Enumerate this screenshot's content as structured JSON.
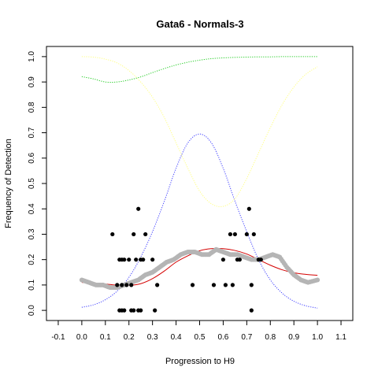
{
  "chart_data": {
    "type": "scatter",
    "title": "Gata6 - Normals-3",
    "xlabel": "Progression to H9",
    "ylabel": "Frequency of Detection",
    "xlim": [
      -0.15,
      1.15
    ],
    "ylim": [
      -0.04,
      1.04
    ],
    "x_ticks": [
      "-0.1",
      "0.0",
      "0.1",
      "0.2",
      "0.3",
      "0.4",
      "0.5",
      "0.6",
      "0.7",
      "0.8",
      "0.9",
      "1.0",
      "1.1"
    ],
    "y_ticks": [
      "0.0",
      "0.1",
      "0.2",
      "0.3",
      "0.4",
      "0.5",
      "0.6",
      "0.7",
      "0.8",
      "0.9",
      "1.0"
    ],
    "grid": false,
    "legend": "none",
    "colors": {
      "points": "#000000",
      "smoothed": "#b5b5b5",
      "fit": "#d40000",
      "blue_curve": "#4040ff",
      "green_curve": "#22cc22",
      "yellow_curve": "#ffff80"
    },
    "series": [
      {
        "role": "observed points",
        "x": [
          0.13,
          0.15,
          0.16,
          0.16,
          0.17,
          0.17,
          0.17,
          0.18,
          0.18,
          0.19,
          0.2,
          0.21,
          0.21,
          0.22,
          0.22,
          0.23,
          0.24,
          0.24,
          0.25,
          0.25,
          0.26,
          0.27,
          0.3,
          0.31,
          0.32,
          0.47,
          0.56,
          0.6,
          0.61,
          0.63,
          0.64,
          0.65,
          0.66,
          0.67,
          0.7,
          0.71,
          0.72,
          0.72,
          0.73,
          0.75,
          0.76
        ],
        "y": [
          0.3,
          0.1,
          0.2,
          0.0,
          0.1,
          0.2,
          0.0,
          0.2,
          0.0,
          0.1,
          0.2,
          0.0,
          0.1,
          0.0,
          0.3,
          0.2,
          0.0,
          0.4,
          0.2,
          0.0,
          0.2,
          0.3,
          0.2,
          0.0,
          0.1,
          0.1,
          0.1,
          0.2,
          0.1,
          0.3,
          0.1,
          0.3,
          0.2,
          0.2,
          0.3,
          0.4,
          0.0,
          0.1,
          0.3,
          0.2,
          0.2
        ]
      },
      {
        "role": "smoothed frequency (gray dots)",
        "x": [
          0.0,
          0.03,
          0.06,
          0.09,
          0.12,
          0.15,
          0.18,
          0.21,
          0.24,
          0.27,
          0.3,
          0.33,
          0.36,
          0.39,
          0.42,
          0.45,
          0.48,
          0.51,
          0.54,
          0.57,
          0.6,
          0.63,
          0.66,
          0.69,
          0.72,
          0.75,
          0.78,
          0.81,
          0.84,
          0.87,
          0.9,
          0.93,
          0.96,
          1.0
        ],
        "y": [
          0.12,
          0.11,
          0.1,
          0.1,
          0.09,
          0.09,
          0.1,
          0.11,
          0.12,
          0.14,
          0.15,
          0.17,
          0.19,
          0.2,
          0.22,
          0.23,
          0.23,
          0.22,
          0.22,
          0.24,
          0.23,
          0.22,
          0.22,
          0.21,
          0.2,
          0.2,
          0.21,
          0.22,
          0.21,
          0.17,
          0.14,
          0.12,
          0.11,
          0.12
        ]
      },
      {
        "role": "fitted curve (red)",
        "x": [
          0.0,
          0.05,
          0.1,
          0.15,
          0.2,
          0.25,
          0.3,
          0.35,
          0.4,
          0.45,
          0.5,
          0.55,
          0.6,
          0.65,
          0.7,
          0.75,
          0.8,
          0.85,
          0.9,
          0.95,
          1.0
        ],
        "y": [
          0.11,
          0.108,
          0.104,
          0.099,
          0.098,
          0.105,
          0.125,
          0.155,
          0.19,
          0.215,
          0.235,
          0.243,
          0.243,
          0.236,
          0.222,
          0.2,
          0.178,
          0.16,
          0.148,
          0.142,
          0.138
        ]
      },
      {
        "role": "blue dotted curve",
        "x": [
          0.0,
          0.05,
          0.1,
          0.15,
          0.2,
          0.25,
          0.3,
          0.35,
          0.4,
          0.45,
          0.5,
          0.55,
          0.6,
          0.65,
          0.7,
          0.75,
          0.8,
          0.85,
          0.9,
          0.95,
          1.0
        ],
        "y": [
          0.012,
          0.022,
          0.042,
          0.076,
          0.13,
          0.21,
          0.31,
          0.43,
          0.56,
          0.66,
          0.695,
          0.66,
          0.56,
          0.43,
          0.31,
          0.2,
          0.12,
          0.068,
          0.036,
          0.018,
          0.009
        ]
      },
      {
        "role": "green dotted curve",
        "x": [
          0.0,
          0.05,
          0.1,
          0.15,
          0.2,
          0.25,
          0.3,
          0.35,
          0.4,
          0.45,
          0.5,
          0.55,
          0.6,
          0.65,
          0.7,
          0.75,
          0.8,
          0.85,
          0.9,
          0.95,
          1.0
        ],
        "y": [
          0.921,
          0.912,
          0.9,
          0.9,
          0.908,
          0.92,
          0.937,
          0.953,
          0.967,
          0.978,
          0.986,
          0.992,
          0.995,
          0.997,
          0.998,
          0.999,
          0.999,
          1.0,
          1.0,
          1.0,
          1.0
        ]
      },
      {
        "role": "yellow dotted curve",
        "x": [
          0.0,
          0.05,
          0.1,
          0.15,
          0.2,
          0.25,
          0.3,
          0.35,
          0.4,
          0.45,
          0.5,
          0.55,
          0.6,
          0.65,
          0.7,
          0.75,
          0.8,
          0.85,
          0.9,
          0.95,
          1.0
        ],
        "y": [
          1.0,
          0.998,
          0.99,
          0.975,
          0.945,
          0.9,
          0.84,
          0.76,
          0.66,
          0.56,
          0.47,
          0.42,
          0.41,
          0.44,
          0.52,
          0.62,
          0.72,
          0.81,
          0.88,
          0.93,
          0.96
        ]
      }
    ]
  }
}
